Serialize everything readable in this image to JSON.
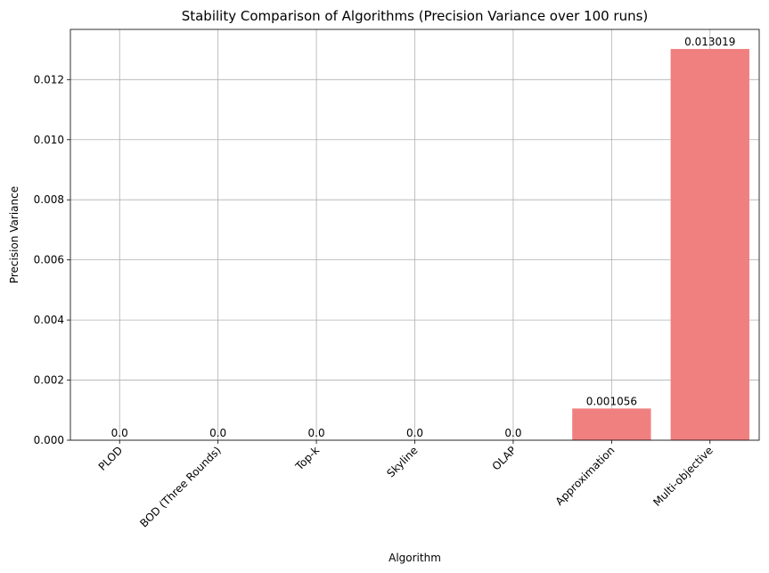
{
  "chart_data": {
    "type": "bar",
    "title": "Stability Comparison of Algorithms (Precision Variance over 100 runs)",
    "xlabel": "Algorithm",
    "ylabel": "Precision Variance",
    "categories": [
      "PLOD",
      "BOD (Three Rounds)",
      "Top-k",
      "Skyline",
      "OLAP",
      "Approximation",
      "Multi-objective"
    ],
    "values": [
      0.0,
      0.0,
      0.0,
      0.0,
      0.0,
      0.001056,
      0.013019
    ],
    "value_labels": [
      "0.0",
      "0.0",
      "0.0",
      "0.0",
      "0.0",
      "0.001056",
      "0.013019"
    ],
    "yticks": [
      0.0,
      0.002,
      0.004,
      0.006,
      0.008,
      0.01,
      0.012
    ],
    "ytick_labels": [
      "0.000",
      "0.002",
      "0.004",
      "0.006",
      "0.008",
      "0.010",
      "0.012"
    ],
    "ylim": [
      0,
      0.01367
    ],
    "grid": true,
    "colors": {
      "bar": "#f08080",
      "grid": "#b0b0b0",
      "axis": "#000000"
    }
  }
}
